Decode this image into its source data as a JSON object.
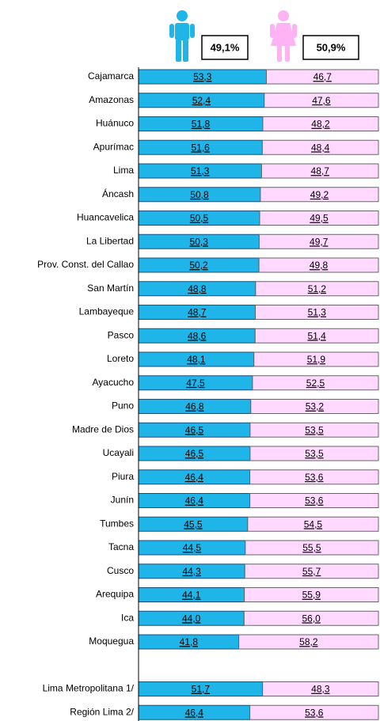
{
  "chart_data": {
    "type": "stacked_barh",
    "categories": [
      "Cajamarca",
      "Amazonas",
      "Huánuco",
      "Apurímac",
      "Lima",
      "Áncash",
      "Huancavelica",
      "La Libertad",
      "Prov. Const. del Callao",
      "San Martín",
      "Lambayeque",
      "Pasco",
      "Loreto",
      "Ayacucho",
      "Puno",
      "Madre de Dios",
      "Ucayali",
      "Piura",
      "Junín",
      "Tumbes",
      "Tacna",
      "Cusco",
      "Arequipa",
      "Ica",
      "Moquegua",
      null,
      "Lima Metropolitana 1/",
      "Región Lima 2/"
    ],
    "series": [
      {
        "color": "#1fb5e8",
        "total": 49.1,
        "total_label": "49,1%",
        "values": [
          53.3,
          52.4,
          51.8,
          51.6,
          51.3,
          50.8,
          50.5,
          50.3,
          50.2,
          48.8,
          48.7,
          48.6,
          48.1,
          47.5,
          46.8,
          46.5,
          46.5,
          46.4,
          46.4,
          45.5,
          44.5,
          44.3,
          44.1,
          44.0,
          41.8,
          null,
          51.7,
          46.4
        ],
        "value_labels": [
          "53,3",
          "52,4",
          "51,8",
          "51,6",
          "51,3",
          "50,8",
          "50,5",
          "50,3",
          "50,2",
          "48,8",
          "48,7",
          "48,6",
          "48,1",
          "47,5",
          "46,8",
          "46,5",
          "46,5",
          "46,4",
          "46,4",
          "45,5",
          "44,5",
          "44,3",
          "44,1",
          "44,0",
          "41,8",
          null,
          "51,7",
          "46,4"
        ]
      },
      {
        "color": "#ffd9ff",
        "total": 50.9,
        "total_label": "50,9%",
        "values": [
          46.7,
          47.6,
          48.2,
          48.4,
          48.7,
          49.2,
          49.5,
          49.7,
          49.8,
          51.2,
          51.3,
          51.4,
          51.9,
          52.5,
          53.2,
          53.5,
          53.5,
          53.6,
          53.6,
          54.5,
          55.5,
          55.7,
          55.9,
          56.0,
          58.2,
          null,
          48.3,
          53.6
        ],
        "value_labels": [
          "46,7",
          "47,6",
          "48,2",
          "48,4",
          "48,7",
          "49,2",
          "49,5",
          "49,7",
          "49,8",
          "51,2",
          "51,3",
          "51,4",
          "51,9",
          "52,5",
          "53,2",
          "53,5",
          "53,5",
          "53,6",
          "53,6",
          "54,5",
          "55,5",
          "55,7",
          "55,9",
          "56,0",
          "58,2",
          null,
          "48,3",
          "53,6"
        ]
      }
    ],
    "xlim": [
      0,
      100
    ]
  }
}
